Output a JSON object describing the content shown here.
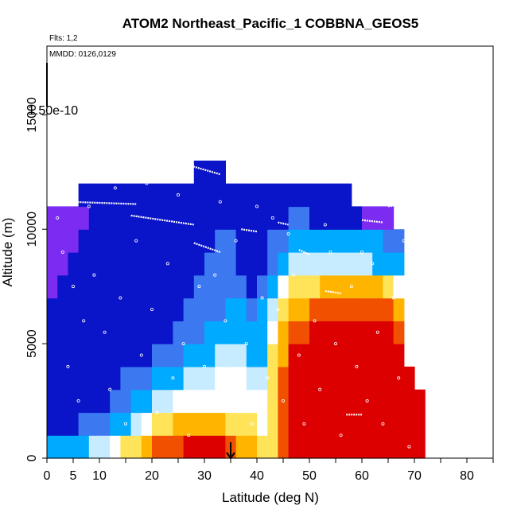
{
  "chart_data": {
    "type": "heatmap",
    "title": "ATOM2 Northeast_Pacific_1 COBBNA_GEOS5",
    "annotations": [
      "Flts: 1,2",
      "MMDD: 0126,0129"
    ],
    "colorbar_label": "1.50e-10",
    "xlabel": "Latitude (deg N)",
    "ylabel": "Altitude (m)",
    "xlim": [
      0,
      85
    ],
    "ylim": [
      0,
      18000
    ],
    "x_ticks": [
      0,
      5,
      10,
      20,
      30,
      40,
      50,
      60,
      70,
      80
    ],
    "y_ticks": [
      0,
      5000,
      10000,
      15000
    ],
    "grid": false,
    "marker_latitude": 35,
    "palette": [
      "#7b2cf0",
      "#0a14c8",
      "#3c78f0",
      "#00aaff",
      "#c8ecff",
      "#ffffff",
      "#ffe45a",
      "#ffb400",
      "#f05000",
      "#dc0000",
      "#b40000"
    ],
    "lat_bins": [
      1,
      3,
      5,
      7,
      9,
      11,
      13,
      15,
      17,
      19,
      21,
      23,
      25,
      27,
      29,
      31,
      33,
      35,
      37,
      39,
      41,
      43,
      45,
      47,
      49,
      51,
      53,
      55,
      57,
      59,
      61,
      63,
      65,
      67,
      69,
      71
    ],
    "alt_bins": [
      500,
      1500,
      2500,
      3500,
      4500,
      5500,
      6500,
      7500,
      8500,
      9500,
      10500,
      11500,
      12500
    ],
    "values": [
      [
        3,
        3,
        3,
        3,
        4,
        4,
        5,
        6,
        6,
        7,
        8,
        8,
        8,
        9,
        9,
        9,
        9,
        8,
        7,
        7,
        6,
        6,
        8,
        9,
        9,
        9,
        9,
        9,
        9,
        9,
        9,
        9,
        9,
        9,
        9,
        9
      ],
      [
        1,
        1,
        1,
        2,
        2,
        2,
        3,
        3,
        4,
        5,
        6,
        6,
        7,
        7,
        7,
        7,
        7,
        6,
        6,
        6,
        5,
        6,
        8,
        9,
        9,
        9,
        9,
        9,
        9,
        9,
        9,
        9,
        9,
        9,
        9,
        9
      ],
      [
        1,
        1,
        1,
        1,
        1,
        1,
        2,
        2,
        3,
        3,
        4,
        4,
        5,
        5,
        5,
        5,
        5,
        5,
        5,
        5,
        5,
        6,
        8,
        9,
        9,
        9,
        9,
        9,
        9,
        9,
        9,
        9,
        9,
        9,
        9,
        9
      ],
      [
        1,
        1,
        1,
        1,
        1,
        1,
        1,
        2,
        2,
        2,
        3,
        3,
        3,
        4,
        4,
        4,
        5,
        5,
        5,
        4,
        4,
        6,
        8,
        9,
        9,
        9,
        9,
        9,
        9,
        9,
        9,
        9,
        9,
        9,
        9,
        -1
      ],
      [
        1,
        1,
        1,
        1,
        1,
        1,
        1,
        1,
        1,
        1,
        2,
        2,
        2,
        3,
        3,
        3,
        4,
        4,
        4,
        3,
        3,
        6,
        7,
        9,
        9,
        9,
        9,
        9,
        9,
        9,
        9,
        9,
        9,
        9,
        -1,
        -1
      ],
      [
        1,
        1,
        1,
        1,
        1,
        1,
        1,
        1,
        1,
        1,
        1,
        1,
        2,
        2,
        2,
        3,
        3,
        3,
        3,
        3,
        3,
        5,
        7,
        8,
        8,
        9,
        9,
        9,
        9,
        9,
        9,
        9,
        9,
        8,
        -1,
        -1
      ],
      [
        1,
        1,
        1,
        1,
        1,
        1,
        1,
        1,
        1,
        1,
        1,
        1,
        1,
        2,
        2,
        2,
        2,
        3,
        3,
        2,
        3,
        4,
        6,
        7,
        7,
        8,
        8,
        8,
        8,
        8,
        8,
        8,
        8,
        7,
        -1,
        -1
      ],
      [
        0,
        1,
        1,
        1,
        1,
        1,
        1,
        1,
        1,
        1,
        1,
        1,
        1,
        1,
        2,
        2,
        2,
        2,
        2,
        1,
        2,
        3,
        5,
        6,
        6,
        6,
        7,
        7,
        7,
        7,
        7,
        7,
        6,
        5,
        -1,
        -1
      ],
      [
        0,
        0,
        1,
        1,
        1,
        1,
        1,
        1,
        1,
        1,
        1,
        1,
        1,
        1,
        1,
        2,
        2,
        2,
        1,
        1,
        1,
        2,
        3,
        4,
        4,
        4,
        4,
        4,
        4,
        4,
        4,
        3,
        3,
        3,
        -1,
        -1
      ],
      [
        0,
        0,
        0,
        1,
        1,
        1,
        1,
        1,
        1,
        1,
        1,
        1,
        1,
        1,
        1,
        1,
        2,
        2,
        1,
        1,
        1,
        2,
        2,
        3,
        3,
        3,
        3,
        3,
        3,
        3,
        3,
        3,
        2,
        2,
        -1,
        -1
      ],
      [
        0,
        0,
        0,
        0,
        1,
        1,
        1,
        1,
        1,
        1,
        1,
        1,
        1,
        1,
        1,
        1,
        1,
        1,
        1,
        1,
        1,
        1,
        1,
        2,
        2,
        1,
        1,
        1,
        1,
        1,
        0,
        0,
        0,
        -1,
        -1,
        -1
      ],
      [
        -1,
        -1,
        -1,
        1,
        1,
        1,
        1,
        1,
        1,
        1,
        1,
        1,
        1,
        1,
        1,
        1,
        1,
        1,
        1,
        1,
        1,
        1,
        1,
        1,
        1,
        1,
        1,
        1,
        1,
        -1,
        -1,
        -1,
        -1,
        -1,
        -1,
        -1
      ],
      [
        -1,
        -1,
        -1,
        -1,
        -1,
        -1,
        -1,
        -1,
        -1,
        -1,
        -1,
        -1,
        -1,
        -1,
        1,
        1,
        1,
        -1,
        -1,
        -1,
        -1,
        -1,
        -1,
        -1,
        -1,
        -1,
        -1,
        -1,
        -1,
        -1,
        -1,
        -1,
        -1,
        -1,
        -1,
        -1
      ]
    ],
    "flight_tracks": [
      [
        [
          27,
          12800
        ],
        [
          33,
          12400
        ]
      ],
      [
        [
          4,
          11200
        ],
        [
          17,
          11100
        ]
      ],
      [
        [
          16,
          10600
        ],
        [
          28,
          10200
        ]
      ],
      [
        [
          28,
          9400
        ],
        [
          33,
          9000
        ]
      ],
      [
        [
          37,
          10000
        ],
        [
          40,
          9900
        ]
      ],
      [
        [
          44,
          10300
        ],
        [
          46,
          10200
        ]
      ],
      [
        [
          48,
          9100
        ],
        [
          50,
          8900
        ]
      ],
      [
        [
          60,
          10400
        ],
        [
          64,
          10300
        ]
      ],
      [
        [
          65,
          11000
        ],
        [
          68,
          11100
        ]
      ],
      [
        [
          53,
          7300
        ],
        [
          56,
          7200
        ]
      ],
      [
        [
          57,
          1900
        ],
        [
          60,
          1900
        ]
      ]
    ],
    "sample_points": [
      [
        3,
        9000
      ],
      [
        5,
        7500
      ],
      [
        7,
        6000
      ],
      [
        4,
        4000
      ],
      [
        6,
        2500
      ],
      [
        9,
        8000
      ],
      [
        11,
        5500
      ],
      [
        12,
        3000
      ],
      [
        14,
        7000
      ],
      [
        15,
        1500
      ],
      [
        17,
        9500
      ],
      [
        18,
        4500
      ],
      [
        20,
        6500
      ],
      [
        21,
        2000
      ],
      [
        23,
        8500
      ],
      [
        24,
        3500
      ],
      [
        26,
        5000
      ],
      [
        27,
        1000
      ],
      [
        29,
        7500
      ],
      [
        30,
        4000
      ],
      [
        31,
        2500
      ],
      [
        32,
        8000
      ],
      [
        34,
        6000
      ],
      [
        35,
        3000
      ],
      [
        36,
        9500
      ],
      [
        38,
        5000
      ],
      [
        39,
        1500
      ],
      [
        41,
        7000
      ],
      [
        42,
        3500
      ],
      [
        43,
        10500
      ],
      [
        44,
        6500
      ],
      [
        45,
        2500
      ],
      [
        47,
        8000
      ],
      [
        48,
        4500
      ],
      [
        49,
        1500
      ],
      [
        51,
        6000
      ],
      [
        52,
        3000
      ],
      [
        54,
        9000
      ],
      [
        55,
        5000
      ],
      [
        56,
        1000
      ],
      [
        58,
        7500
      ],
      [
        59,
        4000
      ],
      [
        61,
        2500
      ],
      [
        62,
        8500
      ],
      [
        63,
        5500
      ],
      [
        64,
        1500
      ],
      [
        66,
        7000
      ],
      [
        67,
        3500
      ],
      [
        68,
        9500
      ],
      [
        69,
        500
      ],
      [
        2,
        10500
      ],
      [
        8,
        11000
      ],
      [
        13,
        11800
      ],
      [
        19,
        12000
      ],
      [
        25,
        11500
      ],
      [
        33,
        11200
      ],
      [
        40,
        11000
      ],
      [
        46,
        9800
      ],
      [
        53,
        10200
      ],
      [
        60,
        9000
      ]
    ]
  }
}
